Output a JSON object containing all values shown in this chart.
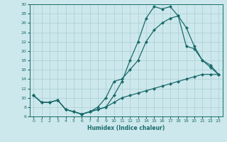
{
  "xlabel": "Humidex (Indice chaleur)",
  "background_color": "#cde8ec",
  "grid_color": "#a8cdd4",
  "line_color": "#1a6b6b",
  "xlim": [
    -0.5,
    23.5
  ],
  "ylim": [
    6,
    30
  ],
  "xticks": [
    0,
    1,
    2,
    3,
    4,
    5,
    6,
    7,
    8,
    9,
    10,
    11,
    12,
    13,
    14,
    15,
    16,
    17,
    18,
    19,
    20,
    21,
    22,
    23
  ],
  "yticks": [
    6,
    8,
    10,
    12,
    14,
    16,
    18,
    20,
    22,
    24,
    26,
    28,
    30
  ],
  "line1_x": [
    0,
    1,
    2,
    3,
    4,
    5,
    6,
    7,
    8,
    9,
    10,
    11,
    12,
    13,
    14,
    15,
    16,
    17,
    18,
    19,
    20,
    21,
    22,
    23
  ],
  "line1_y": [
    10.5,
    9.0,
    9.0,
    9.5,
    7.5,
    7.0,
    6.5,
    7.0,
    7.5,
    8.0,
    10.5,
    13.5,
    18.0,
    22.0,
    27.0,
    29.5,
    29.0,
    29.5,
    27.5,
    25.0,
    21.0,
    18.0,
    17.0,
    15.0
  ],
  "line2_x": [
    0,
    1,
    2,
    3,
    4,
    5,
    6,
    7,
    8,
    9,
    10,
    11,
    12,
    13,
    14,
    15,
    16,
    17,
    18,
    19,
    20,
    21,
    22,
    23
  ],
  "line2_y": [
    10.5,
    9.0,
    9.0,
    9.5,
    7.5,
    7.0,
    6.5,
    7.0,
    8.0,
    10.0,
    13.5,
    14.0,
    16.0,
    18.0,
    22.0,
    24.5,
    26.0,
    27.0,
    27.5,
    21.0,
    20.5,
    18.0,
    16.5,
    15.0
  ],
  "line3_x": [
    0,
    1,
    2,
    3,
    4,
    5,
    6,
    7,
    8,
    9,
    10,
    11,
    12,
    13,
    14,
    15,
    16,
    17,
    18,
    19,
    20,
    21,
    22,
    23
  ],
  "line3_y": [
    10.5,
    9.0,
    9.0,
    9.5,
    7.5,
    7.0,
    6.5,
    7.0,
    7.5,
    8.0,
    9.0,
    10.0,
    10.5,
    11.0,
    11.5,
    12.0,
    12.5,
    13.0,
    13.5,
    14.0,
    14.5,
    15.0,
    15.0,
    15.0
  ]
}
